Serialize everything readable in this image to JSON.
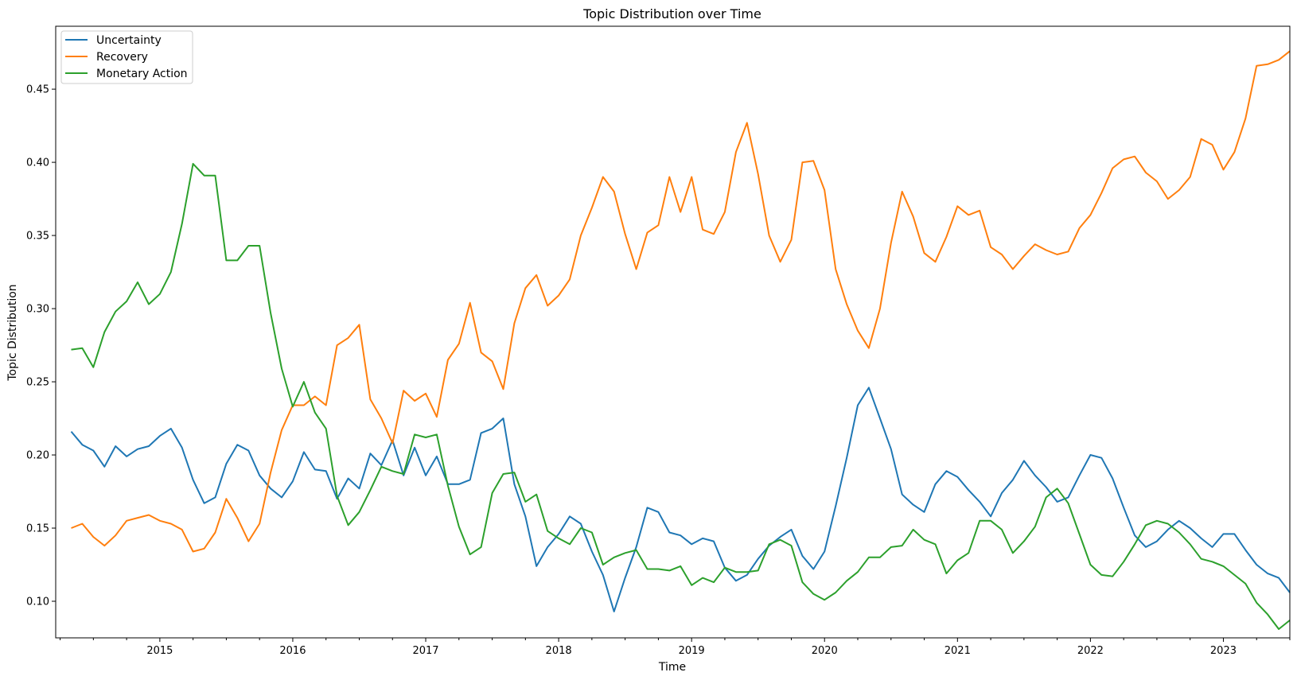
{
  "chart_data": {
    "type": "line",
    "title": "Topic Distribution over Time",
    "xlabel": "Time",
    "ylabel": "Topic Distribution",
    "x_start": "2014-05",
    "x_end": "2023-07",
    "x_ticks": [
      "2015",
      "2016",
      "2017",
      "2018",
      "2019",
      "2020",
      "2021",
      "2022",
      "2023"
    ],
    "y_ticks": [
      "0.10",
      "0.15",
      "0.20",
      "0.25",
      "0.30",
      "0.35",
      "0.40",
      "0.45"
    ],
    "ylim": [
      0.075,
      0.493
    ],
    "grid": false,
    "legend_position": "top-left",
    "series": [
      {
        "name": "Uncertainty",
        "color": "#1f77b4",
        "values": [
          0.216,
          0.207,
          0.203,
          0.192,
          0.206,
          0.199,
          0.204,
          0.206,
          0.213,
          0.218,
          0.205,
          0.183,
          0.167,
          0.171,
          0.194,
          0.207,
          0.203,
          0.186,
          0.177,
          0.171,
          0.182,
          0.202,
          0.19,
          0.189,
          0.17,
          0.184,
          0.177,
          0.201,
          0.193,
          0.21,
          0.186,
          0.205,
          0.186,
          0.199,
          0.18,
          0.18,
          0.183,
          0.215,
          0.218,
          0.225,
          0.18,
          0.158,
          0.124,
          0.137,
          0.146,
          0.158,
          0.153,
          0.134,
          0.118,
          0.093,
          0.116,
          0.137,
          0.164,
          0.161,
          0.147,
          0.145,
          0.139,
          0.143,
          0.141,
          0.123,
          0.114,
          0.118,
          0.129,
          0.138,
          0.144,
          0.149,
          0.131,
          0.122,
          0.134,
          0.165,
          0.198,
          0.234,
          0.246,
          0.225,
          0.204,
          0.173,
          0.166,
          0.161,
          0.18,
          0.189,
          0.185,
          0.176,
          0.168,
          0.158,
          0.174,
          0.183,
          0.196,
          0.186,
          0.178,
          0.168,
          0.171,
          0.186,
          0.2,
          0.198,
          0.184,
          0.164,
          0.145,
          0.137,
          0.141,
          0.149,
          0.155,
          0.15,
          0.143,
          0.137,
          0.146,
          0.146,
          0.135,
          0.125,
          0.119,
          0.116,
          0.106
        ]
      },
      {
        "name": "Recovery",
        "color": "#ff7f0e",
        "values": [
          0.15,
          0.153,
          0.144,
          0.138,
          0.145,
          0.155,
          0.157,
          0.159,
          0.155,
          0.153,
          0.149,
          0.134,
          0.136,
          0.147,
          0.17,
          0.157,
          0.141,
          0.153,
          0.188,
          0.217,
          0.234,
          0.234,
          0.24,
          0.234,
          0.275,
          0.28,
          0.289,
          0.238,
          0.225,
          0.208,
          0.244,
          0.237,
          0.242,
          0.226,
          0.265,
          0.276,
          0.304,
          0.27,
          0.264,
          0.245,
          0.29,
          0.314,
          0.323,
          0.302,
          0.309,
          0.32,
          0.35,
          0.369,
          0.39,
          0.38,
          0.351,
          0.327,
          0.352,
          0.357,
          0.39,
          0.366,
          0.39,
          0.354,
          0.351,
          0.366,
          0.407,
          0.427,
          0.392,
          0.35,
          0.332,
          0.347,
          0.4,
          0.401,
          0.381,
          0.327,
          0.303,
          0.285,
          0.273,
          0.3,
          0.345,
          0.38,
          0.363,
          0.338,
          0.332,
          0.349,
          0.37,
          0.364,
          0.367,
          0.342,
          0.337,
          0.327,
          0.336,
          0.344,
          0.34,
          0.337,
          0.339,
          0.355,
          0.364,
          0.379,
          0.396,
          0.402,
          0.404,
          0.393,
          0.387,
          0.375,
          0.381,
          0.39,
          0.416,
          0.412,
          0.395,
          0.407,
          0.43,
          0.466,
          0.467,
          0.47,
          0.476
        ]
      },
      {
        "name": "Monetary Action",
        "color": "#2ca02c",
        "values": [
          0.272,
          0.273,
          0.26,
          0.284,
          0.298,
          0.305,
          0.318,
          0.303,
          0.31,
          0.325,
          0.358,
          0.399,
          0.391,
          0.391,
          0.333,
          0.333,
          0.343,
          0.343,
          0.297,
          0.259,
          0.233,
          0.25,
          0.229,
          0.218,
          0.172,
          0.152,
          0.161,
          0.176,
          0.192,
          0.189,
          0.187,
          0.214,
          0.212,
          0.214,
          0.179,
          0.151,
          0.132,
          0.137,
          0.174,
          0.187,
          0.188,
          0.168,
          0.173,
          0.148,
          0.143,
          0.139,
          0.15,
          0.147,
          0.125,
          0.13,
          0.133,
          0.135,
          0.122,
          0.122,
          0.121,
          0.124,
          0.111,
          0.116,
          0.113,
          0.123,
          0.12,
          0.12,
          0.121,
          0.139,
          0.142,
          0.138,
          0.113,
          0.105,
          0.101,
          0.106,
          0.114,
          0.12,
          0.13,
          0.13,
          0.137,
          0.138,
          0.149,
          0.142,
          0.139,
          0.119,
          0.128,
          0.133,
          0.155,
          0.155,
          0.149,
          0.133,
          0.141,
          0.151,
          0.171,
          0.177,
          0.167,
          0.146,
          0.125,
          0.118,
          0.117,
          0.127,
          0.139,
          0.152,
          0.155,
          0.153,
          0.147,
          0.139,
          0.129,
          0.127,
          0.124,
          0.118,
          0.112,
          0.099,
          0.091,
          0.081,
          0.087
        ]
      }
    ]
  }
}
